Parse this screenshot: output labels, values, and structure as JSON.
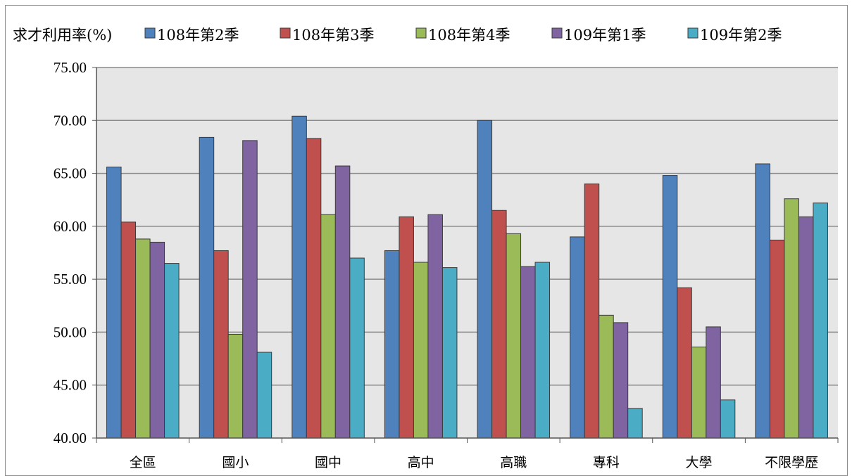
{
  "chart_data": {
    "type": "bar",
    "ylabel": "求才利用率(%)",
    "categories": [
      "全區",
      "國小",
      "國中",
      "高中",
      "高職",
      "專科",
      "大學",
      "不限學歷"
    ],
    "series": [
      {
        "name": "108年第2季",
        "color": "#4F81BD",
        "values": [
          65.6,
          68.4,
          70.4,
          57.7,
          70.0,
          59.0,
          64.8,
          65.9
        ]
      },
      {
        "name": "108年第3季",
        "color": "#C0504D",
        "values": [
          60.4,
          57.7,
          68.3,
          60.9,
          61.5,
          64.0,
          54.2,
          58.7
        ]
      },
      {
        "name": "108年第4季",
        "color": "#9BBB59",
        "values": [
          58.8,
          49.8,
          61.1,
          56.6,
          59.3,
          51.6,
          48.6,
          62.6
        ]
      },
      {
        "name": "109年第1季",
        "color": "#8064A2",
        "values": [
          58.5,
          68.1,
          65.7,
          61.1,
          56.2,
          50.9,
          50.5,
          60.9
        ]
      },
      {
        "name": "109年第2季",
        "color": "#4BACC6",
        "values": [
          56.5,
          48.1,
          57.0,
          56.1,
          56.6,
          42.8,
          43.6,
          62.2
        ]
      }
    ],
    "ylim": [
      40,
      75
    ],
    "yticks": [
      "40.00",
      "45.00",
      "50.00",
      "55.00",
      "60.00",
      "65.00",
      "70.00",
      "75.00"
    ],
    "grid": true,
    "legend_placement": "top"
  }
}
